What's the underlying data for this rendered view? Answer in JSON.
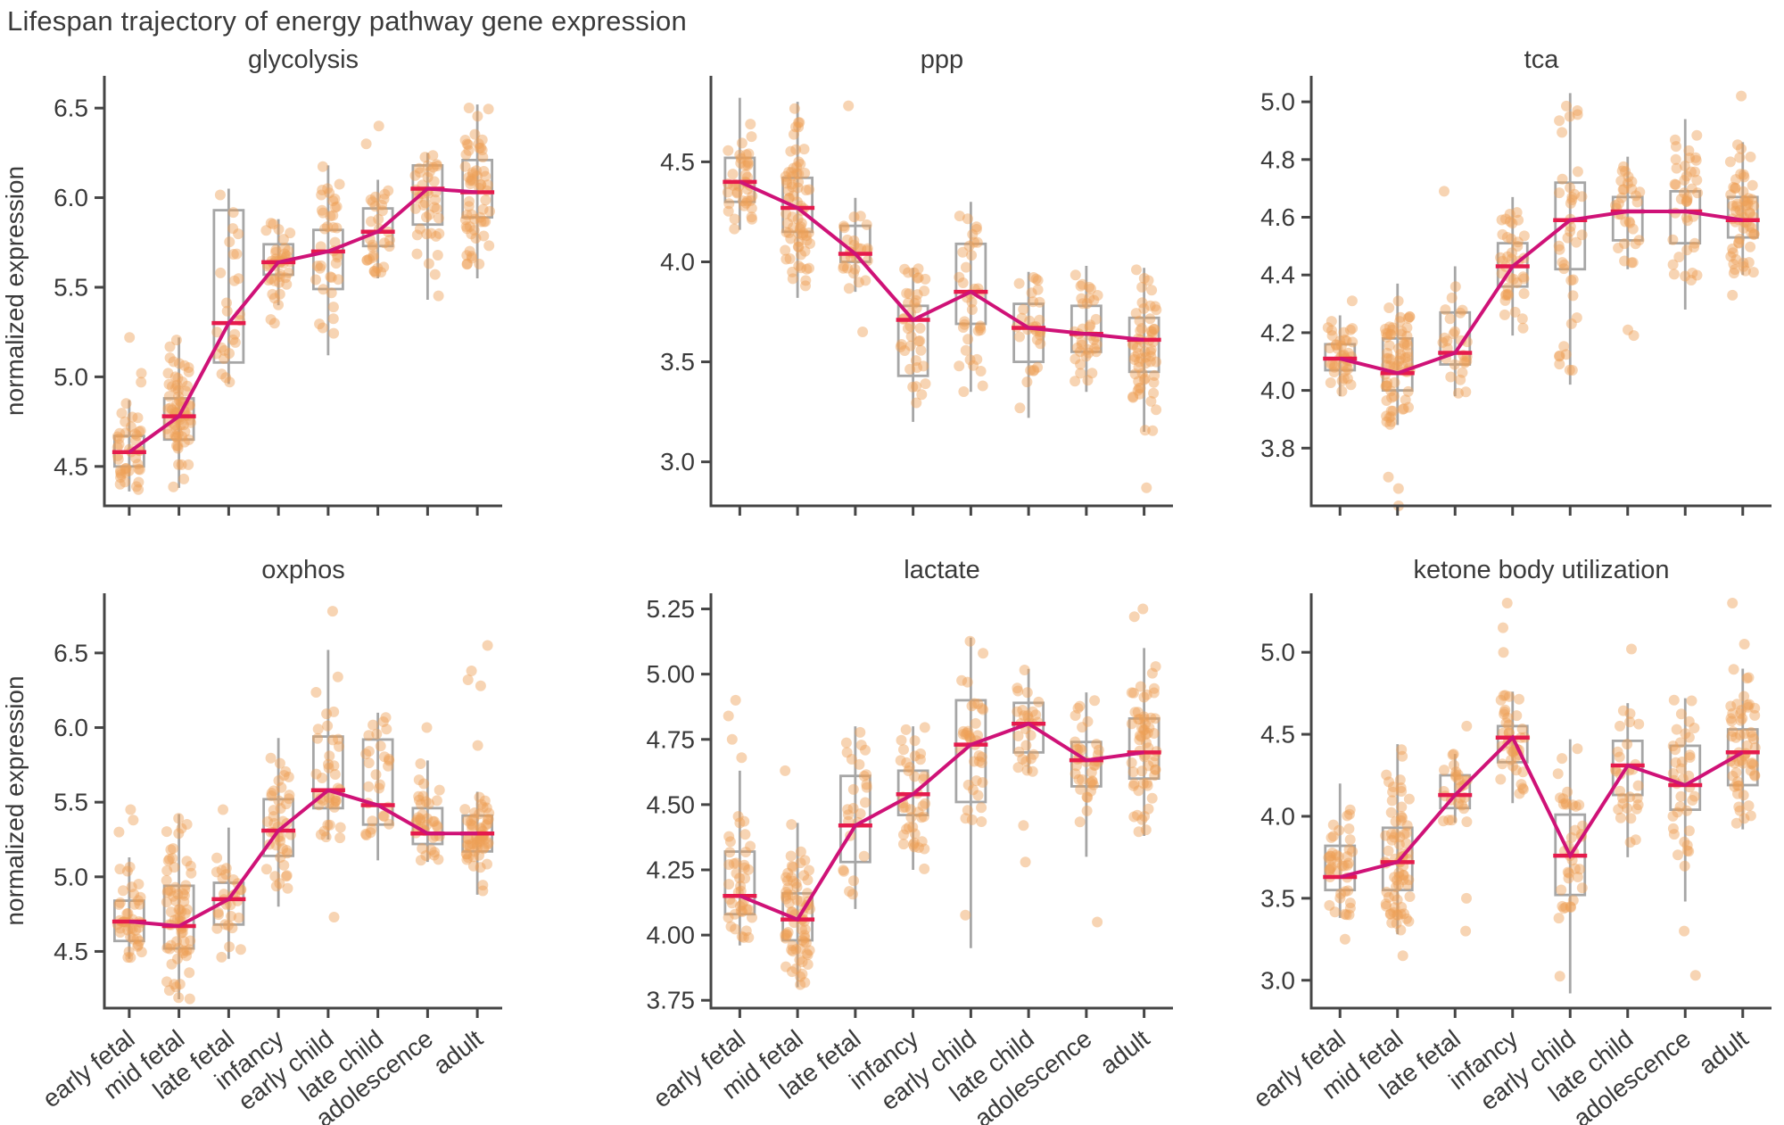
{
  "figure_title": "Lifespan trajectory of energy pathway gene expression",
  "ylabel": "normalized expression",
  "categories": [
    "early fetal",
    "mid fetal",
    "late fetal",
    "infancy",
    "early child",
    "late child",
    "adolescence",
    "adult"
  ],
  "colors": {
    "points": "#ed9f57",
    "box_edge": "#a6a6a6",
    "whisker": "#a6a6a6",
    "median": "#e51a4c",
    "trend": "#cf1277",
    "axis": "#454545",
    "text": "#3a3a3a",
    "background": "#ffffff"
  },
  "chart_data": [
    {
      "type": "strip-box-trend",
      "title": "glycolysis",
      "ylim": [
        4.28,
        6.68
      ],
      "ytick_values": [
        4.5,
        5.0,
        5.5,
        6.0,
        6.5
      ],
      "ytick_labels": [
        "4.5",
        "5.0",
        "5.5",
        "6.0",
        "6.5"
      ],
      "groups": [
        {
          "label": "early fetal",
          "n": 40,
          "q1": 4.5,
          "med": 4.58,
          "q3": 4.67,
          "lo": 4.36,
          "hi": 4.87,
          "out": [
            5.22,
            5.02,
            4.97
          ]
        },
        {
          "label": "mid fetal",
          "n": 70,
          "q1": 4.65,
          "med": 4.78,
          "q3": 4.88,
          "lo": 4.38,
          "hi": 5.22,
          "out": []
        },
        {
          "label": "late fetal",
          "n": 26,
          "q1": 5.08,
          "med": 5.3,
          "q3": 5.93,
          "lo": 4.96,
          "hi": 6.05,
          "out": []
        },
        {
          "label": "infancy",
          "n": 40,
          "q1": 5.57,
          "med": 5.64,
          "q3": 5.74,
          "lo": 5.4,
          "hi": 5.88,
          "out": [
            5.32,
            5.3
          ]
        },
        {
          "label": "early child",
          "n": 38,
          "q1": 5.49,
          "med": 5.7,
          "q3": 5.82,
          "lo": 5.12,
          "hi": 6.18,
          "out": []
        },
        {
          "label": "late child",
          "n": 30,
          "q1": 5.73,
          "med": 5.81,
          "q3": 5.94,
          "lo": 5.55,
          "hi": 6.1,
          "out": [
            6.4,
            6.3
          ]
        },
        {
          "label": "adolescence",
          "n": 40,
          "q1": 5.85,
          "med": 6.05,
          "q3": 6.18,
          "lo": 5.43,
          "hi": 6.25,
          "out": []
        },
        {
          "label": "adult",
          "n": 60,
          "q1": 5.89,
          "med": 6.03,
          "q3": 6.21,
          "lo": 5.55,
          "hi": 6.52,
          "out": []
        }
      ]
    },
    {
      "type": "strip-box-trend",
      "title": "ppp",
      "ylim": [
        2.78,
        4.93
      ],
      "ytick_values": [
        3.0,
        3.5,
        4.0,
        4.5
      ],
      "ytick_labels": [
        "3.0",
        "3.5",
        "4.0",
        "4.5"
      ],
      "groups": [
        {
          "label": "early fetal",
          "n": 40,
          "q1": 4.3,
          "med": 4.4,
          "q3": 4.52,
          "lo": 4.16,
          "hi": 4.82,
          "out": []
        },
        {
          "label": "mid fetal",
          "n": 70,
          "q1": 4.15,
          "med": 4.27,
          "q3": 4.42,
          "lo": 3.82,
          "hi": 4.8,
          "out": []
        },
        {
          "label": "late fetal",
          "n": 26,
          "q1": 4.0,
          "med": 4.04,
          "q3": 4.18,
          "lo": 3.85,
          "hi": 4.32,
          "out": [
            4.78,
            3.65
          ]
        },
        {
          "label": "infancy",
          "n": 38,
          "q1": 3.43,
          "med": 3.71,
          "q3": 3.78,
          "lo": 3.2,
          "hi": 3.97,
          "out": []
        },
        {
          "label": "early child",
          "n": 36,
          "q1": 3.69,
          "med": 3.85,
          "q3": 4.09,
          "lo": 3.35,
          "hi": 4.3,
          "out": []
        },
        {
          "label": "late child",
          "n": 30,
          "q1": 3.5,
          "med": 3.67,
          "q3": 3.79,
          "lo": 3.22,
          "hi": 3.95,
          "out": []
        },
        {
          "label": "adolescence",
          "n": 36,
          "q1": 3.55,
          "med": 3.64,
          "q3": 3.78,
          "lo": 3.35,
          "hi": 3.98,
          "out": []
        },
        {
          "label": "adult",
          "n": 60,
          "q1": 3.45,
          "med": 3.61,
          "q3": 3.72,
          "lo": 3.15,
          "hi": 3.97,
          "out": [
            2.87
          ]
        }
      ]
    },
    {
      "type": "strip-box-trend",
      "title": "tca",
      "ylim": [
        3.6,
        5.09
      ],
      "ytick_values": [
        3.8,
        4.0,
        4.2,
        4.4,
        4.6,
        4.8,
        5.0
      ],
      "ytick_labels": [
        "3.8",
        "4.0",
        "4.2",
        "4.4",
        "4.6",
        "4.8",
        "5.0"
      ],
      "groups": [
        {
          "label": "early fetal",
          "n": 40,
          "q1": 4.07,
          "med": 4.11,
          "q3": 4.16,
          "lo": 3.98,
          "hi": 4.26,
          "out": [
            4.31
          ]
        },
        {
          "label": "mid fetal",
          "n": 70,
          "q1": 4.0,
          "med": 4.06,
          "q3": 4.18,
          "lo": 3.88,
          "hi": 4.37,
          "out": [
            3.7,
            3.66,
            3.6
          ]
        },
        {
          "label": "late fetal",
          "n": 26,
          "q1": 4.09,
          "med": 4.13,
          "q3": 4.27,
          "lo": 3.98,
          "hi": 4.43,
          "out": [
            4.69
          ]
        },
        {
          "label": "infancy",
          "n": 38,
          "q1": 4.36,
          "med": 4.43,
          "q3": 4.51,
          "lo": 4.19,
          "hi": 4.67,
          "out": []
        },
        {
          "label": "early child",
          "n": 36,
          "q1": 4.42,
          "med": 4.59,
          "q3": 4.72,
          "lo": 4.02,
          "hi": 5.03,
          "out": [
            4.12,
            4.07
          ]
        },
        {
          "label": "late child",
          "n": 30,
          "q1": 4.52,
          "med": 4.62,
          "q3": 4.67,
          "lo": 4.42,
          "hi": 4.81,
          "out": [
            4.21,
            4.19
          ]
        },
        {
          "label": "adolescence",
          "n": 40,
          "q1": 4.51,
          "med": 4.62,
          "q3": 4.69,
          "lo": 4.28,
          "hi": 4.94,
          "out": []
        },
        {
          "label": "adult",
          "n": 60,
          "q1": 4.53,
          "med": 4.59,
          "q3": 4.67,
          "lo": 4.4,
          "hi": 4.86,
          "out": [
            5.02,
            4.33
          ]
        }
      ]
    },
    {
      "type": "strip-box-trend",
      "title": "oxphos",
      "ylim": [
        4.12,
        6.9
      ],
      "ytick_values": [
        4.5,
        5.0,
        5.5,
        6.0,
        6.5
      ],
      "ytick_labels": [
        "4.5",
        "5.0",
        "5.5",
        "6.0",
        "6.5"
      ],
      "groups": [
        {
          "label": "early fetal",
          "n": 42,
          "q1": 4.57,
          "med": 4.7,
          "q3": 4.84,
          "lo": 4.45,
          "hi": 5.13,
          "out": [
            5.45,
            5.38,
            5.3
          ]
        },
        {
          "label": "mid fetal",
          "n": 70,
          "q1": 4.52,
          "med": 4.67,
          "q3": 4.94,
          "lo": 4.18,
          "hi": 5.42,
          "out": []
        },
        {
          "label": "late fetal",
          "n": 28,
          "q1": 4.68,
          "med": 4.85,
          "q3": 4.96,
          "lo": 4.45,
          "hi": 5.33,
          "out": [
            5.45
          ]
        },
        {
          "label": "infancy",
          "n": 42,
          "q1": 5.14,
          "med": 5.31,
          "q3": 5.52,
          "lo": 4.8,
          "hi": 5.93,
          "out": []
        },
        {
          "label": "early child",
          "n": 38,
          "q1": 5.46,
          "med": 5.58,
          "q3": 5.94,
          "lo": 5.25,
          "hi": 6.52,
          "out": [
            6.78,
            4.73
          ]
        },
        {
          "label": "late child",
          "n": 28,
          "q1": 5.35,
          "med": 5.48,
          "q3": 5.92,
          "lo": 5.11,
          "hi": 6.1,
          "out": []
        },
        {
          "label": "adolescence",
          "n": 38,
          "q1": 5.22,
          "med": 5.29,
          "q3": 5.46,
          "lo": 5.1,
          "hi": 5.78,
          "out": [
            6.0
          ]
        },
        {
          "label": "adult",
          "n": 58,
          "q1": 5.17,
          "med": 5.29,
          "q3": 5.41,
          "lo": 4.88,
          "hi": 5.57,
          "out": [
            6.55,
            6.38,
            6.32,
            6.28,
            5.88
          ]
        }
      ]
    },
    {
      "type": "strip-box-trend",
      "title": "lactate",
      "ylim": [
        3.72,
        5.31
      ],
      "ytick_values": [
        3.75,
        4.0,
        4.25,
        4.5,
        4.75,
        5.0,
        5.25
      ],
      "ytick_labels": [
        "3.75",
        "4.00",
        "4.25",
        "4.50",
        "4.75",
        "5.00",
        "5.25"
      ],
      "groups": [
        {
          "label": "early fetal",
          "n": 40,
          "q1": 4.08,
          "med": 4.15,
          "q3": 4.32,
          "lo": 3.96,
          "hi": 4.63,
          "out": [
            4.9,
            4.84,
            4.75,
            4.68
          ]
        },
        {
          "label": "mid fetal",
          "n": 70,
          "q1": 3.98,
          "med": 4.06,
          "q3": 4.16,
          "lo": 3.8,
          "hi": 4.43,
          "out": [
            4.63
          ]
        },
        {
          "label": "late fetal",
          "n": 26,
          "q1": 4.28,
          "med": 4.42,
          "q3": 4.61,
          "lo": 4.1,
          "hi": 4.8,
          "out": []
        },
        {
          "label": "infancy",
          "n": 40,
          "q1": 4.46,
          "med": 4.54,
          "q3": 4.63,
          "lo": 4.25,
          "hi": 4.8,
          "out": []
        },
        {
          "label": "early child",
          "n": 38,
          "q1": 4.51,
          "med": 4.73,
          "q3": 4.9,
          "lo": 3.95,
          "hi": 5.14,
          "out": []
        },
        {
          "label": "late child",
          "n": 28,
          "q1": 4.7,
          "med": 4.81,
          "q3": 4.89,
          "lo": 4.62,
          "hi": 5.02,
          "out": [
            4.42,
            4.28
          ]
        },
        {
          "label": "adolescence",
          "n": 36,
          "q1": 4.57,
          "med": 4.67,
          "q3": 4.74,
          "lo": 4.3,
          "hi": 4.93,
          "out": [
            4.05
          ]
        },
        {
          "label": "adult",
          "n": 58,
          "q1": 4.6,
          "med": 4.7,
          "q3": 4.83,
          "lo": 4.38,
          "hi": 5.1,
          "out": [
            5.25,
            5.22
          ]
        }
      ]
    },
    {
      "type": "strip-box-trend",
      "title": "ketone body utilization",
      "ylim": [
        2.83,
        5.36
      ],
      "ytick_values": [
        3.0,
        3.5,
        4.0,
        4.5,
        5.0
      ],
      "ytick_labels": [
        "3.0",
        "3.5",
        "4.0",
        "4.5",
        "5.0"
      ],
      "groups": [
        {
          "label": "early fetal",
          "n": 42,
          "q1": 3.55,
          "med": 3.63,
          "q3": 3.82,
          "lo": 3.38,
          "hi": 4.2,
          "out": [
            3.25
          ]
        },
        {
          "label": "mid fetal",
          "n": 72,
          "q1": 3.55,
          "med": 3.72,
          "q3": 3.93,
          "lo": 3.28,
          "hi": 4.44,
          "out": [
            3.15
          ]
        },
        {
          "label": "late fetal",
          "n": 26,
          "q1": 4.05,
          "med": 4.13,
          "q3": 4.25,
          "lo": 3.96,
          "hi": 4.38,
          "out": [
            4.55,
            3.5,
            3.3
          ]
        },
        {
          "label": "infancy",
          "n": 40,
          "q1": 4.33,
          "med": 4.48,
          "q3": 4.55,
          "lo": 4.08,
          "hi": 4.76,
          "out": [
            5.3,
            5.15,
            5.0
          ]
        },
        {
          "label": "early child",
          "n": 38,
          "q1": 3.52,
          "med": 3.76,
          "q3": 4.01,
          "lo": 2.92,
          "hi": 4.47,
          "out": []
        },
        {
          "label": "late child",
          "n": 28,
          "q1": 4.13,
          "med": 4.31,
          "q3": 4.46,
          "lo": 3.75,
          "hi": 4.69,
          "out": [
            5.02
          ]
        },
        {
          "label": "adolescence",
          "n": 38,
          "q1": 4.04,
          "med": 4.19,
          "q3": 4.43,
          "lo": 3.48,
          "hi": 4.72,
          "out": [
            3.3,
            3.03
          ]
        },
        {
          "label": "adult",
          "n": 58,
          "q1": 4.19,
          "med": 4.39,
          "q3": 4.53,
          "lo": 3.92,
          "hi": 4.9,
          "out": [
            5.3,
            5.05
          ]
        }
      ]
    }
  ]
}
